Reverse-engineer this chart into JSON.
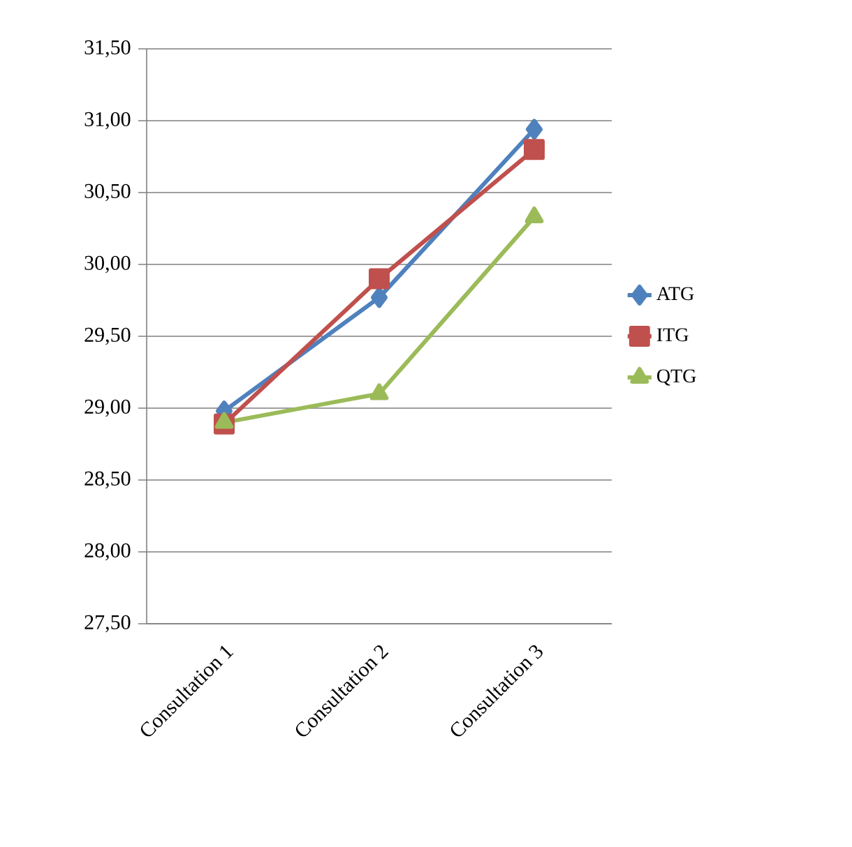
{
  "chart_data": {
    "type": "line",
    "categories": [
      "Consultation 1",
      "Consultation 2",
      "Consultation 3"
    ],
    "series": [
      {
        "name": "ATG",
        "color": "#4f81bd",
        "marker": "diamond",
        "values": [
          28.98,
          29.77,
          30.94
        ]
      },
      {
        "name": "ITG",
        "color": "#c0504d",
        "marker": "square",
        "values": [
          28.89,
          29.9,
          30.8
        ]
      },
      {
        "name": "QTG",
        "color": "#9bbb59",
        "marker": "triangle",
        "values": [
          28.9,
          29.1,
          30.33
        ]
      }
    ],
    "ylim": [
      27.5,
      31.5
    ],
    "yticks": [
      {
        "value": 27.5,
        "label": "27,50"
      },
      {
        "value": 28,
        "label": "28,00"
      },
      {
        "value": 28.5,
        "label": "28,50"
      },
      {
        "value": 29,
        "label": "29,00"
      },
      {
        "value": 29.5,
        "label": "29,50"
      },
      {
        "value": 30,
        "label": "30,00"
      },
      {
        "value": 30.5,
        "label": "30,50"
      },
      {
        "value": 31,
        "label": "31,00"
      },
      {
        "value": 31.5,
        "label": "31,50"
      }
    ],
    "grid": "y",
    "legend": "right",
    "line_style": "solid"
  }
}
